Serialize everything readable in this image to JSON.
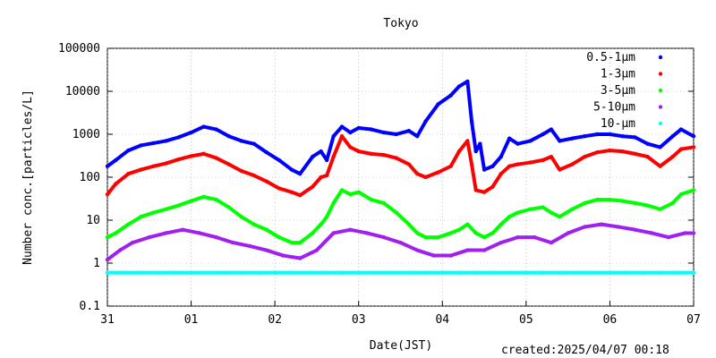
{
  "chart_data": {
    "type": "scatter",
    "title": "Tokyo",
    "xlabel": "Date(JST)",
    "ylabel": "Number conc.[particles/L]",
    "y_scale": "log",
    "ylim": [
      0.1,
      100000
    ],
    "y_ticks": [
      "0.1",
      "1",
      "10",
      "100",
      "1000",
      "10000",
      "100000"
    ],
    "x_ticks": [
      "31",
      "01",
      "02",
      "03",
      "04",
      "05",
      "06",
      "07"
    ],
    "grid": true,
    "legend_position": "top-right",
    "series": [
      {
        "name": "0.5-1μm",
        "color": "#0000ff",
        "values": [
          [
            0,
            180
          ],
          [
            0.1,
            250
          ],
          [
            0.25,
            420
          ],
          [
            0.4,
            550
          ],
          [
            0.55,
            620
          ],
          [
            0.7,
            700
          ],
          [
            0.85,
            850
          ],
          [
            1.0,
            1100
          ],
          [
            1.15,
            1500
          ],
          [
            1.3,
            1300
          ],
          [
            1.45,
            900
          ],
          [
            1.6,
            700
          ],
          [
            1.75,
            600
          ],
          [
            1.9,
            380
          ],
          [
            2.05,
            250
          ],
          [
            2.2,
            150
          ],
          [
            2.3,
            120
          ],
          [
            2.45,
            300
          ],
          [
            2.55,
            400
          ],
          [
            2.62,
            250
          ],
          [
            2.7,
            900
          ],
          [
            2.8,
            1500
          ],
          [
            2.9,
            1100
          ],
          [
            3.0,
            1400
          ],
          [
            3.15,
            1300
          ],
          [
            3.3,
            1100
          ],
          [
            3.45,
            1000
          ],
          [
            3.6,
            1200
          ],
          [
            3.7,
            900
          ],
          [
            3.8,
            2000
          ],
          [
            3.95,
            5000
          ],
          [
            4.1,
            8000
          ],
          [
            4.2,
            13000
          ],
          [
            4.3,
            17000
          ],
          [
            4.35,
            2000
          ],
          [
            4.4,
            400
          ],
          [
            4.45,
            600
          ],
          [
            4.5,
            150
          ],
          [
            4.6,
            180
          ],
          [
            4.7,
            300
          ],
          [
            4.8,
            800
          ],
          [
            4.9,
            600
          ],
          [
            5.05,
            700
          ],
          [
            5.2,
            1000
          ],
          [
            5.3,
            1300
          ],
          [
            5.4,
            700
          ],
          [
            5.55,
            800
          ],
          [
            5.7,
            900
          ],
          [
            5.85,
            1000
          ],
          [
            6.0,
            1000
          ],
          [
            6.15,
            900
          ],
          [
            6.3,
            850
          ],
          [
            6.45,
            600
          ],
          [
            6.6,
            500
          ],
          [
            6.75,
            900
          ],
          [
            6.85,
            1300
          ],
          [
            7.0,
            900
          ]
        ]
      },
      {
        "name": "1-3μm",
        "color": "#ff0000",
        "values": [
          [
            0,
            40
          ],
          [
            0.1,
            70
          ],
          [
            0.25,
            120
          ],
          [
            0.4,
            150
          ],
          [
            0.55,
            180
          ],
          [
            0.7,
            210
          ],
          [
            0.85,
            260
          ],
          [
            1.0,
            310
          ],
          [
            1.15,
            350
          ],
          [
            1.3,
            280
          ],
          [
            1.45,
            200
          ],
          [
            1.6,
            140
          ],
          [
            1.75,
            110
          ],
          [
            1.9,
            80
          ],
          [
            2.05,
            55
          ],
          [
            2.2,
            45
          ],
          [
            2.3,
            38
          ],
          [
            2.45,
            60
          ],
          [
            2.55,
            100
          ],
          [
            2.62,
            110
          ],
          [
            2.7,
            300
          ],
          [
            2.8,
            900
          ],
          [
            2.9,
            500
          ],
          [
            3.0,
            400
          ],
          [
            3.15,
            350
          ],
          [
            3.3,
            330
          ],
          [
            3.45,
            280
          ],
          [
            3.6,
            200
          ],
          [
            3.7,
            120
          ],
          [
            3.8,
            100
          ],
          [
            3.95,
            130
          ],
          [
            4.1,
            180
          ],
          [
            4.2,
            400
          ],
          [
            4.3,
            700
          ],
          [
            4.35,
            200
          ],
          [
            4.4,
            50
          ],
          [
            4.5,
            45
          ],
          [
            4.6,
            60
          ],
          [
            4.7,
            120
          ],
          [
            4.8,
            180
          ],
          [
            4.9,
            200
          ],
          [
            5.05,
            220
          ],
          [
            5.2,
            250
          ],
          [
            5.3,
            300
          ],
          [
            5.4,
            150
          ],
          [
            5.55,
            200
          ],
          [
            5.7,
            300
          ],
          [
            5.85,
            380
          ],
          [
            6.0,
            420
          ],
          [
            6.15,
            400
          ],
          [
            6.3,
            350
          ],
          [
            6.45,
            300
          ],
          [
            6.6,
            180
          ],
          [
            6.75,
            300
          ],
          [
            6.85,
            450
          ],
          [
            7.0,
            500
          ]
        ]
      },
      {
        "name": "3-5μm",
        "color": "#00ff00",
        "values": [
          [
            0,
            4
          ],
          [
            0.1,
            5
          ],
          [
            0.25,
            8
          ],
          [
            0.4,
            12
          ],
          [
            0.55,
            15
          ],
          [
            0.7,
            18
          ],
          [
            0.85,
            22
          ],
          [
            1.0,
            28
          ],
          [
            1.15,
            35
          ],
          [
            1.3,
            30
          ],
          [
            1.45,
            20
          ],
          [
            1.6,
            12
          ],
          [
            1.75,
            8
          ],
          [
            1.9,
            6
          ],
          [
            2.05,
            4
          ],
          [
            2.2,
            3
          ],
          [
            2.3,
            3
          ],
          [
            2.45,
            5
          ],
          [
            2.55,
            8
          ],
          [
            2.62,
            12
          ],
          [
            2.7,
            25
          ],
          [
            2.8,
            50
          ],
          [
            2.9,
            40
          ],
          [
            3.0,
            45
          ],
          [
            3.15,
            30
          ],
          [
            3.3,
            25
          ],
          [
            3.45,
            15
          ],
          [
            3.6,
            8
          ],
          [
            3.7,
            5
          ],
          [
            3.8,
            4
          ],
          [
            3.95,
            4
          ],
          [
            4.1,
            5
          ],
          [
            4.2,
            6
          ],
          [
            4.3,
            8
          ],
          [
            4.4,
            5
          ],
          [
            4.5,
            4
          ],
          [
            4.6,
            5
          ],
          [
            4.7,
            8
          ],
          [
            4.8,
            12
          ],
          [
            4.9,
            15
          ],
          [
            5.05,
            18
          ],
          [
            5.2,
            20
          ],
          [
            5.3,
            15
          ],
          [
            5.4,
            12
          ],
          [
            5.55,
            18
          ],
          [
            5.7,
            25
          ],
          [
            5.85,
            30
          ],
          [
            6.0,
            30
          ],
          [
            6.15,
            28
          ],
          [
            6.3,
            25
          ],
          [
            6.45,
            22
          ],
          [
            6.6,
            18
          ],
          [
            6.75,
            25
          ],
          [
            6.85,
            40
          ],
          [
            7.0,
            50
          ]
        ]
      },
      {
        "name": "5-10μm",
        "color": "#a020f0",
        "values": [
          [
            0,
            1.2
          ],
          [
            0.15,
            2
          ],
          [
            0.3,
            3
          ],
          [
            0.5,
            4
          ],
          [
            0.7,
            5
          ],
          [
            0.9,
            6
          ],
          [
            1.1,
            5
          ],
          [
            1.3,
            4
          ],
          [
            1.5,
            3
          ],
          [
            1.7,
            2.5
          ],
          [
            1.9,
            2
          ],
          [
            2.1,
            1.5
          ],
          [
            2.3,
            1.3
          ],
          [
            2.5,
            2
          ],
          [
            2.7,
            5
          ],
          [
            2.9,
            6
          ],
          [
            3.1,
            5
          ],
          [
            3.3,
            4
          ],
          [
            3.5,
            3
          ],
          [
            3.7,
            2
          ],
          [
            3.9,
            1.5
          ],
          [
            4.1,
            1.5
          ],
          [
            4.3,
            2
          ],
          [
            4.5,
            2
          ],
          [
            4.7,
            3
          ],
          [
            4.9,
            4
          ],
          [
            5.1,
            4
          ],
          [
            5.3,
            3
          ],
          [
            5.5,
            5
          ],
          [
            5.7,
            7
          ],
          [
            5.9,
            8
          ],
          [
            6.1,
            7
          ],
          [
            6.3,
            6
          ],
          [
            6.5,
            5
          ],
          [
            6.7,
            4
          ],
          [
            6.9,
            5
          ],
          [
            7.0,
            5
          ]
        ]
      },
      {
        "name": "10-μm",
        "color": "#00ffff",
        "values": [
          [
            0,
            0.6
          ],
          [
            0.2,
            0.6
          ],
          [
            0.4,
            0.6
          ],
          [
            0.6,
            0.6
          ],
          [
            0.8,
            0.6
          ],
          [
            1.0,
            0.6
          ],
          [
            1.2,
            0.6
          ],
          [
            1.4,
            0.6
          ],
          [
            1.6,
            0.6
          ],
          [
            1.8,
            0.6
          ],
          [
            2.0,
            0.6
          ],
          [
            2.2,
            0.6
          ],
          [
            2.4,
            0.6
          ],
          [
            2.6,
            0.6
          ],
          [
            2.8,
            0.6
          ],
          [
            3.0,
            0.6
          ],
          [
            3.2,
            0.6
          ],
          [
            3.4,
            0.6
          ],
          [
            3.6,
            0.6
          ],
          [
            3.8,
            0.6
          ],
          [
            4.0,
            0.6
          ],
          [
            4.2,
            0.6
          ],
          [
            4.4,
            0.6
          ],
          [
            4.6,
            0.6
          ],
          [
            4.8,
            0.6
          ],
          [
            5.0,
            0.6
          ],
          [
            5.2,
            0.6
          ],
          [
            5.4,
            0.6
          ],
          [
            5.6,
            0.6
          ],
          [
            5.8,
            0.6
          ],
          [
            6.0,
            0.6
          ],
          [
            6.2,
            0.6
          ],
          [
            6.4,
            0.6
          ],
          [
            6.6,
            0.6
          ],
          [
            6.8,
            0.6
          ],
          [
            7.0,
            0.6
          ]
        ]
      }
    ]
  },
  "footer": {
    "created": "created:2025/04/07 00:18"
  }
}
